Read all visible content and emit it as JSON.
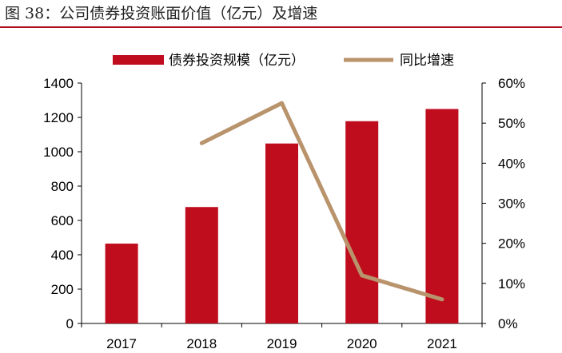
{
  "figure_title": "图 38：公司债券投资账面价值（亿元）及增速",
  "chart_data": {
    "type": "bar",
    "categories": [
      "2017",
      "2018",
      "2019",
      "2020",
      "2021"
    ],
    "series": [
      {
        "name": "债券投资规模（亿元）",
        "type": "bar",
        "axis": "left",
        "values": [
          465,
          678,
          1048,
          1178,
          1249
        ],
        "color": "#c00d1e"
      },
      {
        "name": "同比增速",
        "type": "line",
        "axis": "right",
        "values": [
          null,
          0.45,
          0.55,
          0.12,
          0.06
        ],
        "color": "#b8936c"
      }
    ],
    "y_left": {
      "min": 0,
      "max": 1400,
      "ticks": [
        "0",
        "200",
        "400",
        "600",
        "800",
        "1000",
        "1200",
        "1400"
      ]
    },
    "y_right": {
      "min": 0,
      "max": 0.6,
      "ticks": [
        "0%",
        "10%",
        "20%",
        "30%",
        "40%",
        "50%",
        "60%"
      ]
    },
    "legend": {
      "placement": "top"
    },
    "grid": false
  }
}
